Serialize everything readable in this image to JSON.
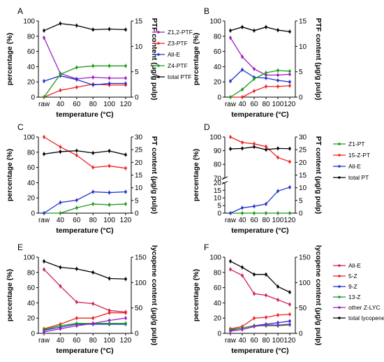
{
  "chart_data": [
    {
      "panel": "A",
      "type": "line",
      "x": [
        "raw",
        "40",
        "60",
        "80",
        "100",
        "120"
      ],
      "xlabel": "temperature (°C)",
      "ylabel_left": "percentage (%)",
      "ylim_left": [
        0,
        100
      ],
      "left_ticks": [
        "0",
        "20",
        "40",
        "60",
        "80",
        "100"
      ],
      "ylabel_right": "PTF content (μg/g pulp)",
      "ylim_right": [
        0,
        15
      ],
      "right_ticks": [
        "0",
        "5",
        "10",
        "15"
      ],
      "series": [
        {
          "name": "Z1,2-PTF",
          "color": "#9b1fc4",
          "axis": "left",
          "values": [
            78,
            31,
            24,
            26,
            25,
            25
          ]
        },
        {
          "name": "Z3-PTF",
          "color": "#ee2222",
          "axis": "left",
          "values": [
            0,
            9,
            13,
            17,
            16,
            16
          ]
        },
        {
          "name": "All-E",
          "color": "#2233cc",
          "axis": "left",
          "values": [
            21,
            28,
            23,
            16,
            18,
            18
          ]
        },
        {
          "name": "Z4-PTF",
          "color": "#1a9a1a",
          "axis": "left",
          "values": [
            0,
            30,
            39,
            41,
            41,
            41
          ]
        },
        {
          "name": "total PTF",
          "color": "#000000",
          "axis": "right",
          "values": [
            13.1,
            14.5,
            14.1,
            13.3,
            13.4,
            13.3
          ]
        }
      ]
    },
    {
      "panel": "B",
      "type": "line",
      "x": [
        "raw",
        "40",
        "60",
        "80",
        "100",
        "120"
      ],
      "xlabel": "temperature (°C)",
      "ylabel_left": "percentage (%)",
      "ylim_left": [
        0,
        100
      ],
      "left_ticks": [
        "0",
        "20",
        "40",
        "60",
        "80",
        "100"
      ],
      "ylabel_right": "PTF content (μg/g pulp)",
      "ylim_right": [
        0,
        15
      ],
      "right_ticks": [
        "0",
        "5",
        "10",
        "15"
      ],
      "series": [
        {
          "name": "Z1,2-PTF",
          "color": "#9b1fc4",
          "axis": "left",
          "values": [
            78,
            53,
            37,
            29,
            29,
            30
          ]
        },
        {
          "name": "Z3-PTF",
          "color": "#ee2222",
          "axis": "left",
          "values": [
            0,
            0,
            8,
            14,
            14,
            15
          ]
        },
        {
          "name": "All-E",
          "color": "#2233cc",
          "axis": "left",
          "values": [
            21,
            36,
            26,
            25,
            22,
            20
          ]
        },
        {
          "name": "Z4-PTF",
          "color": "#1a9a1a",
          "axis": "left",
          "values": [
            0,
            10,
            24,
            32,
            35,
            34
          ]
        },
        {
          "name": "total PTF",
          "color": "#000000",
          "axis": "right",
          "values": [
            13.1,
            13.8,
            13.1,
            13.8,
            13.2,
            12.9
          ]
        }
      ]
    },
    {
      "panel": "C",
      "type": "line",
      "x": [
        "raw",
        "40",
        "60",
        "80",
        "100",
        "120"
      ],
      "xlabel": "temperature (°C)",
      "ylabel_left": "percentage (%)",
      "ylim_left": [
        0,
        100
      ],
      "left_ticks": [
        "0",
        "20",
        "40",
        "60",
        "80",
        "100"
      ],
      "ylabel_right": "PT content (μg/g pulp)",
      "ylim_right": [
        0,
        30
      ],
      "right_ticks": [
        "0",
        "5",
        "10",
        "15",
        "20",
        "25",
        "30"
      ],
      "series": [
        {
          "name": "Z1-PT",
          "color": "#1a9a1a",
          "axis": "left",
          "values": [
            0,
            0,
            7,
            12,
            11,
            12
          ]
        },
        {
          "name": "15-Z-PT",
          "color": "#ee2222",
          "axis": "left",
          "values": [
            100,
            87,
            76,
            60,
            62,
            59
          ]
        },
        {
          "name": "All-E",
          "color": "#2233cc",
          "axis": "left",
          "values": [
            0,
            14,
            17,
            28,
            27,
            28
          ]
        },
        {
          "name": "total PT",
          "color": "#000000",
          "axis": "right",
          "values": [
            23.3,
            24.2,
            24.6,
            23.7,
            24.5,
            23.0
          ]
        }
      ]
    },
    {
      "panel": "D",
      "type": "line",
      "x": [
        "raw",
        "40",
        "60",
        "80",
        "100",
        "120"
      ],
      "xlabel": "temperature (°C)",
      "ylabel_left": "percentage (%)",
      "ylim_left": [
        0,
        100
      ],
      "axis_break": [
        20,
        70
      ],
      "left_ticks": [
        "0",
        "5",
        "10",
        "15",
        "20",
        "70",
        "80",
        "90",
        "100"
      ],
      "ylabel_right": "PT content (μg/g pulp)",
      "ylim_right": [
        0,
        30
      ],
      "right_ticks": [
        "0",
        "5",
        "10",
        "15",
        "20",
        "25",
        "30"
      ],
      "series": [
        {
          "name": "Z1-PT",
          "color": "#1a9a1a",
          "axis": "left",
          "values": [
            0,
            0,
            0,
            0,
            0,
            0
          ]
        },
        {
          "name": "15-Z-PT",
          "color": "#ee2222",
          "axis": "left",
          "values": [
            100,
            96,
            95,
            93,
            85,
            82
          ]
        },
        {
          "name": "All-E",
          "color": "#2233cc",
          "axis": "left",
          "values": [
            0,
            3.5,
            4.5,
            6,
            14.5,
            17
          ]
        },
        {
          "name": "total PT",
          "color": "#000000",
          "axis": "right",
          "values": [
            25.3,
            25.5,
            26.1,
            25.0,
            25.5,
            25.4
          ]
        }
      ]
    },
    {
      "panel": "E",
      "type": "line",
      "x": [
        "raw",
        "40",
        "60",
        "80",
        "100",
        "120"
      ],
      "xlabel": "temperature (°C)",
      "ylabel_left": "percentage (%)",
      "ylim_left": [
        0,
        100
      ],
      "left_ticks": [
        "0",
        "20",
        "40",
        "60",
        "80",
        "100"
      ],
      "ylabel_right": "lycopene content (μg/g pulp)",
      "ylim_right": [
        0,
        150
      ],
      "right_ticks": [
        "0",
        "50",
        "100",
        "150"
      ],
      "series": [
        {
          "name": "All-E",
          "color": "#cc1f55",
          "axis": "left",
          "values": [
            84,
            62,
            41,
            39,
            30,
            28
          ]
        },
        {
          "name": "5-Z",
          "color": "#ee2222",
          "axis": "left",
          "values": [
            6,
            12,
            20,
            20,
            27,
            27
          ]
        },
        {
          "name": "9-Z",
          "color": "#2233cc",
          "axis": "left",
          "values": [
            4,
            8,
            12,
            12,
            12,
            12
          ]
        },
        {
          "name": "13-Z",
          "color": "#1a9a1a",
          "axis": "left",
          "values": [
            5,
            10,
            13,
            13,
            13,
            13
          ]
        },
        {
          "name": "other Z-LYC",
          "color": "#9b1fc4",
          "axis": "left",
          "values": [
            2,
            6,
            10,
            13,
            17,
            20
          ]
        },
        {
          "name": "total lycopene",
          "color": "#000000",
          "axis": "right",
          "values": [
            142,
            130,
            127,
            120,
            108,
            107
          ]
        }
      ]
    },
    {
      "panel": "F",
      "type": "line",
      "x": [
        "raw",
        "40",
        "60",
        "80",
        "100",
        "120"
      ],
      "xlabel": "temperature (°C)",
      "ylabel_left": "percentage (%)",
      "ylim_left": [
        0,
        100
      ],
      "left_ticks": [
        "0",
        "20",
        "40",
        "60",
        "80",
        "100"
      ],
      "ylabel_right": "lycopene content (μg/g pulp)",
      "ylim_right": [
        0,
        150
      ],
      "right_ticks": [
        "0",
        "50",
        "100",
        "150"
      ],
      "series": [
        {
          "name": "All-E",
          "color": "#cc1f55",
          "axis": "left",
          "values": [
            84,
            76,
            52,
            50,
            44,
            38
          ]
        },
        {
          "name": "5-Z",
          "color": "#ee2222",
          "axis": "left",
          "values": [
            6,
            9,
            20,
            21,
            24,
            25
          ]
        },
        {
          "name": "9-Z",
          "color": "#2233cc",
          "axis": "left",
          "values": [
            4,
            7,
            10,
            12,
            14,
            16
          ]
        },
        {
          "name": "13-Z",
          "color": "#1a9a1a",
          "axis": "left",
          "values": [
            5,
            7,
            10,
            10,
            10,
            11
          ]
        },
        {
          "name": "other Z-LYC",
          "color": "#9b1fc4",
          "axis": "left",
          "values": [
            3,
            5,
            9,
            11,
            11,
            12
          ]
        },
        {
          "name": "total lycopene",
          "color": "#000000",
          "axis": "right",
          "values": [
            142,
            130,
            116,
            116,
            92,
            81
          ]
        }
      ]
    }
  ]
}
